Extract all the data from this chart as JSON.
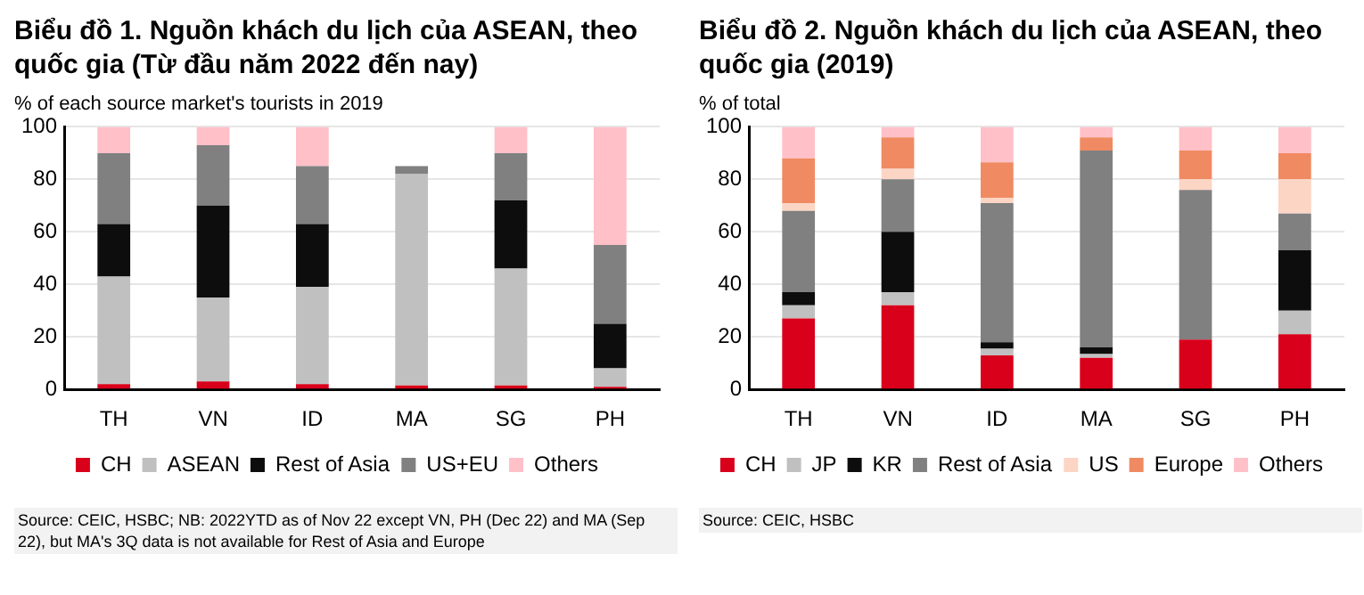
{
  "chart_data": [
    {
      "type": "bar",
      "stacked": true,
      "title": "Biểu đồ 1. Nguồn khách du lịch của ASEAN, theo quốc gia (Từ đầu năm 2022 đến nay)",
      "subtitle": "% of each source market's tourists in 2019",
      "categories": [
        "TH",
        "VN",
        "ID",
        "MA",
        "SG",
        "PH"
      ],
      "series": [
        {
          "name": "CH",
          "color": "#d9001b",
          "values": [
            2,
            3,
            2,
            1.5,
            1.5,
            1
          ]
        },
        {
          "name": "ASEAN",
          "color": "#c0c0c0",
          "values": [
            41,
            32,
            37,
            80.5,
            44.5,
            7
          ]
        },
        {
          "name": "Rest of Asia",
          "color": "#0d0d0d",
          "values": [
            20,
            35,
            24,
            0,
            26,
            17
          ]
        },
        {
          "name": "US+EU",
          "color": "#808080",
          "values": [
            27,
            23,
            22,
            3,
            18,
            30
          ]
        },
        {
          "name": "Others",
          "color": "#ffc0c8",
          "values": [
            10,
            7,
            15,
            0,
            10,
            45
          ]
        }
      ],
      "ylim": [
        0,
        100
      ],
      "yticks": [
        0,
        20,
        40,
        60,
        80,
        100
      ],
      "grid": "y",
      "legend": "bottom",
      "annotations": [
        "Source: CEIC, HSBC; NB: 2022YTD as of Nov 22 except VN, PH (Dec 22) and MA (Sep 22), but MA's 3Q data is not available for Rest of Asia and Europe"
      ]
    },
    {
      "type": "bar",
      "stacked": true,
      "title": "Biểu đồ 2. Nguồn khách du lịch của ASEAN, theo quốc gia (2019)",
      "subtitle": "% of total",
      "categories": [
        "TH",
        "VN",
        "ID",
        "MA",
        "SG",
        "PH"
      ],
      "series": [
        {
          "name": "CH",
          "color": "#d9001b",
          "values": [
            27,
            32,
            13,
            12,
            19,
            21
          ]
        },
        {
          "name": "JP",
          "color": "#c0c0c0",
          "values": [
            5,
            5,
            2.5,
            1.5,
            null,
            9
          ]
        },
        {
          "name": "KR",
          "color": "#0d0d0d",
          "values": [
            5,
            23,
            2.5,
            2.5,
            0,
            23
          ]
        },
        {
          "name": "Rest of Asia",
          "color": "#808080",
          "values": [
            31,
            20,
            53,
            75,
            57,
            14
          ]
        },
        {
          "name": "US",
          "color": "#fcd5c4",
          "values": [
            3,
            4,
            2,
            null,
            4,
            13
          ]
        },
        {
          "name": "Europe",
          "color": "#f08a62",
          "values": [
            17,
            12,
            13.5,
            5,
            11,
            10
          ]
        },
        {
          "name": "Others",
          "color": "#ffc0c8",
          "values": [
            12,
            4,
            13.5,
            4,
            9,
            10
          ]
        }
      ],
      "ylim": [
        0,
        100
      ],
      "yticks": [
        0,
        20,
        40,
        60,
        80,
        100
      ],
      "grid": "y",
      "legend": "bottom",
      "annotations": [
        "Source: CEIC, HSBC"
      ]
    }
  ]
}
